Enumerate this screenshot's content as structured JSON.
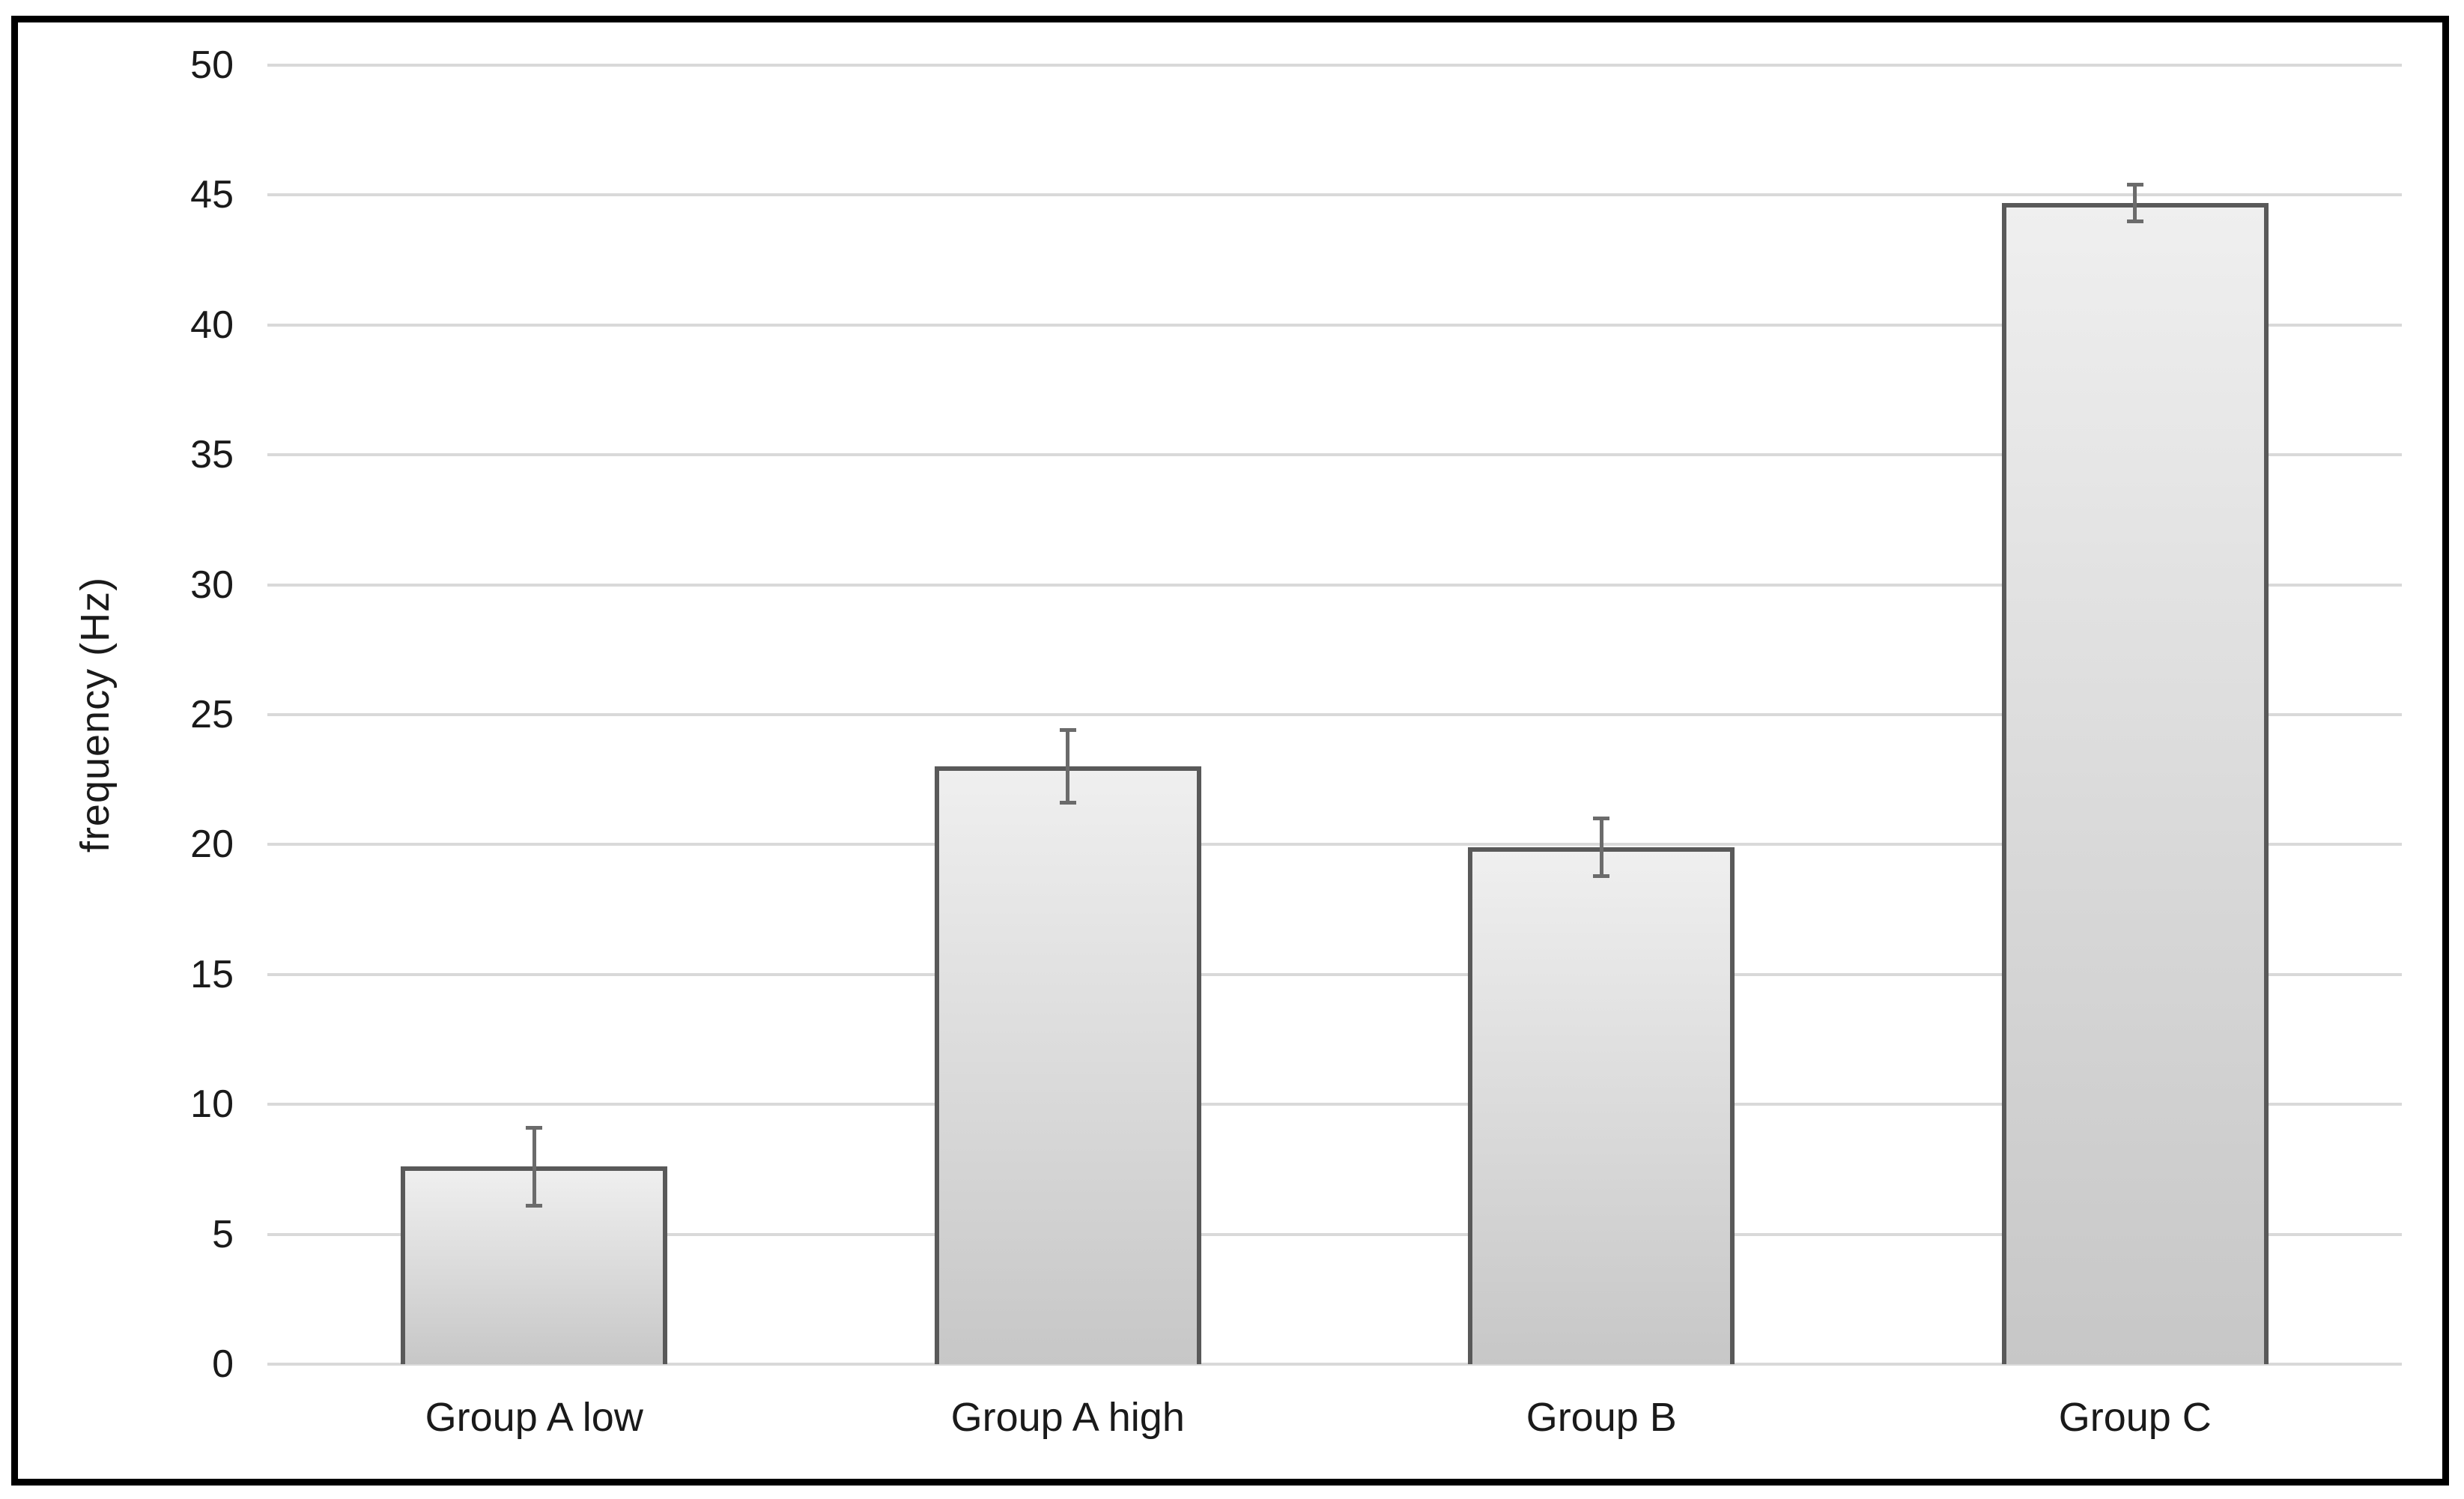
{
  "chart_data": {
    "type": "bar",
    "title": "",
    "xlabel": "",
    "ylabel": "frequency (Hz)",
    "categories": [
      "Group A low",
      "Group A high",
      "Group B",
      "Group C"
    ],
    "values": [
      7.6,
      23,
      19.9,
      44.7
    ],
    "error_bars_plus_minus": [
      1.5,
      1.4,
      1.1,
      0.7
    ],
    "yticks": [
      0,
      5,
      10,
      15,
      20,
      25,
      30,
      35,
      40,
      45,
      50
    ],
    "ylim": [
      0,
      50
    ],
    "grid": true,
    "legend_position": "none",
    "colors": {
      "background": "#ffffff",
      "frame_border": "#000000",
      "gridline": "#d9d9d9",
      "axis_text": "#1a1a1a",
      "bar_fill_top": "#efefef",
      "bar_fill_bottom": "#c7c7c7",
      "bar_border": "#595959",
      "error_bar": "#6b6b6b"
    }
  }
}
